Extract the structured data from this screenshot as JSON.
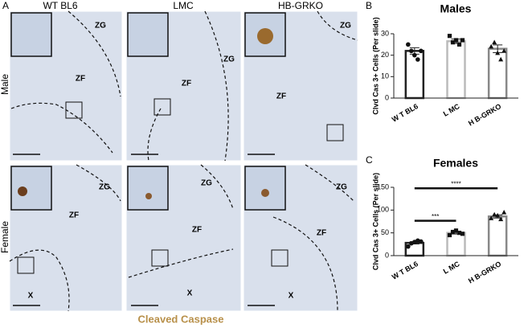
{
  "panel_a": {
    "label": "A",
    "columns": [
      "WT BL6",
      "LMC",
      "HB-GRKO"
    ],
    "rows": [
      "Male",
      "Female"
    ],
    "stain": "Cleaved Caspase",
    "images": [
      {
        "regions": [
          "ZG",
          "ZF"
        ]
      },
      {
        "regions": [
          "ZF",
          "ZG"
        ]
      },
      {
        "regions": [
          "ZG",
          "ZF"
        ]
      },
      {
        "regions": [
          "ZG",
          "ZF",
          "X"
        ]
      },
      {
        "regions": [
          "ZG",
          "ZF",
          "X"
        ]
      },
      {
        "regions": [
          "ZG",
          "ZF",
          "X"
        ]
      }
    ]
  },
  "chart_data": [
    {
      "type": "bar",
      "label": "B",
      "title": "Males",
      "ylabel": "Clvd Cas 3+ Cells (Per slide)",
      "categories": [
        "W T BL6",
        "L MC",
        "H B-GRKO"
      ],
      "values": [
        22,
        26.5,
        23
      ],
      "errors": [
        1.5,
        1,
        1.8
      ],
      "points": [
        [
          25,
          22,
          20,
          18,
          22
        ],
        [
          29,
          26,
          27,
          25,
          27
        ],
        [
          24,
          26,
          21,
          18,
          22
        ]
      ],
      "colors": [
        "#222222",
        "#bbbbbb",
        "#888888"
      ],
      "ylim": [
        0,
        30
      ],
      "yticks": [
        0,
        10,
        20,
        30
      ]
    },
    {
      "type": "bar",
      "label": "C",
      "title": "Females",
      "ylabel": "Clvd Cas 3+ Cells (Per slide)",
      "categories": [
        "W T BL6",
        "L MC",
        "H B-GRKO"
      ],
      "values": [
        28,
        50,
        86
      ],
      "errors": [
        2.5,
        2.5,
        3.5
      ],
      "points": [
        [
          20,
          27,
          30,
          33,
          31
        ],
        [
          45,
          52,
          55,
          50,
          48
        ],
        [
          82,
          90,
          88,
          80,
          95
        ]
      ],
      "colors": [
        "#222222",
        "#bbbbbb",
        "#888888"
      ],
      "ylim": [
        0,
        150
      ],
      "yticks": [
        0,
        50,
        100,
        150
      ],
      "annotations": [
        "***",
        "****"
      ]
    }
  ]
}
